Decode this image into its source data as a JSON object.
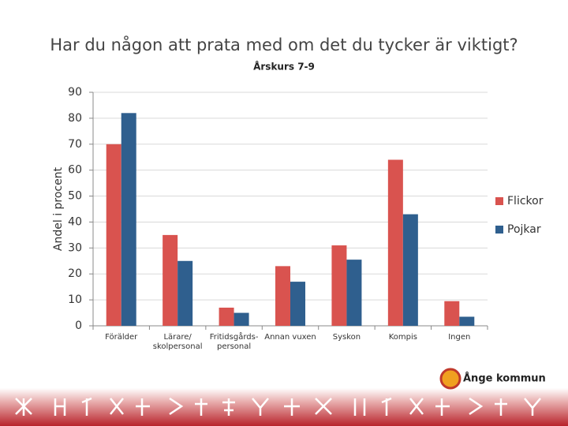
{
  "chart_data": {
    "type": "bar",
    "title": "Har du någon att prata med om det du tycker är viktigt?",
    "subtitle": "Årskurs 7-9",
    "y_label": "Andel i procent",
    "categories": [
      "Förälder",
      "Lärare/ skolpersonal",
      "Fritidsgårds- personal",
      "Annan vuxen",
      "Syskon",
      "Kompis",
      "Ingen"
    ],
    "series": [
      {
        "name": "Flickor",
        "color": "#d9534f",
        "values": [
          70,
          35,
          7,
          23,
          31,
          64,
          9.5
        ]
      },
      {
        "name": "Pojkar",
        "color": "#2f5f8e",
        "values": [
          82,
          25,
          5,
          17,
          25.5,
          43,
          3.5
        ]
      }
    ],
    "ylim": [
      0,
      90
    ],
    "yticks": [
      0,
      10,
      20,
      30,
      40,
      50,
      60,
      70,
      80,
      90
    ],
    "grid": true,
    "legend": "right",
    "logo_text": "Ånge kommun"
  }
}
